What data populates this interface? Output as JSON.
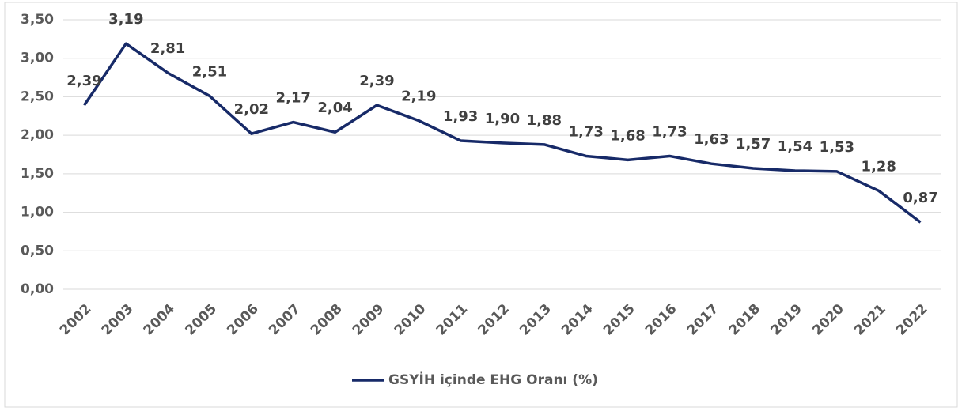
{
  "chart_data": {
    "type": "line",
    "categories": [
      "2002",
      "2003",
      "2004",
      "2005",
      "2006",
      "2007",
      "2008",
      "2009",
      "2010",
      "2011",
      "2012",
      "2013",
      "2014",
      "2015",
      "2016",
      "2017",
      "2018",
      "2019",
      "2020",
      "2021",
      "2022"
    ],
    "series": [
      {
        "name": "GSYİH içinde EHG Oranı (%)",
        "color": "#172a68",
        "values": [
          2.39,
          3.19,
          2.81,
          2.51,
          2.02,
          2.17,
          2.04,
          2.39,
          2.19,
          1.93,
          1.9,
          1.88,
          1.73,
          1.68,
          1.73,
          1.63,
          1.57,
          1.54,
          1.53,
          1.28,
          0.87
        ],
        "value_labels": [
          "2,39",
          "3,19",
          "2,81",
          "2,51",
          "2,02",
          "2,17",
          "2,04",
          "2,39",
          "2,19",
          "1,93",
          "1,90",
          "1,88",
          "1,73",
          "1,68",
          "1,73",
          "1,63",
          "1,57",
          "1,54",
          "1,53",
          "1,28",
          "0,87"
        ]
      }
    ],
    "ylim": [
      0,
      3.5
    ],
    "yticks": [
      {
        "value": 0,
        "label": "0,00"
      },
      {
        "value": 0.5,
        "label": "0,50"
      },
      {
        "value": 1,
        "label": "1,00"
      },
      {
        "value": 1.5,
        "label": "1,50"
      },
      {
        "value": 2,
        "label": "2,00"
      },
      {
        "value": 2.5,
        "label": "2,50"
      },
      {
        "value": 3,
        "label": "3,00"
      },
      {
        "value": 3.5,
        "label": "3,50"
      }
    ],
    "grid": true,
    "legend": "bottom"
  }
}
